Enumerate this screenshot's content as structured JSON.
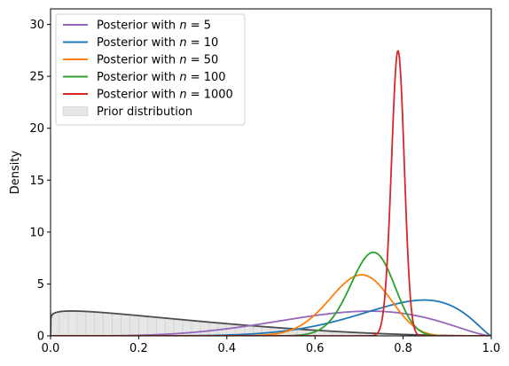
{
  "chart_data": {
    "type": "line",
    "title": "",
    "xlabel": "",
    "ylabel": "Density",
    "xlim": [
      0.0,
      1.0
    ],
    "ylim": [
      0,
      31.5
    ],
    "xticks": [
      0.0,
      0.2,
      0.4,
      0.6,
      0.8,
      1.0
    ],
    "xtick_labels": [
      "0.0",
      "0.2",
      "0.4",
      "0.6",
      "0.8",
      "1.0"
    ],
    "yticks": [
      0,
      5,
      10,
      15,
      20,
      25,
      30
    ],
    "ytick_labels": [
      "0",
      "5",
      "10",
      "15",
      "20",
      "25",
      "30"
    ],
    "grid": false,
    "legend_position": "top-left",
    "series": [
      {
        "name_prefix": "Posterior with ",
        "name_math": "n",
        "name_suffix": " = 5",
        "color": "#9467bd",
        "alpha": 5.2,
        "beta": 2.6
      },
      {
        "name_prefix": "Posterior with ",
        "name_math": "n",
        "name_suffix": " = 10",
        "color": "#1f77b4",
        "alpha": 8.5,
        "beta": 2.35
      },
      {
        "name_prefix": "Posterior with ",
        "name_math": "n",
        "name_suffix": " = 50",
        "color": "#ff7f0e",
        "alpha": 31.9,
        "beta": 13.9
      },
      {
        "name_prefix": "Posterior with ",
        "name_math": "n",
        "name_suffix": " = 100",
        "color": "#2ca02c",
        "alpha": 58.5,
        "beta": 22.0
      },
      {
        "name_prefix": "Posterior with ",
        "name_math": "n",
        "name_suffix": " = 1000",
        "color": "#d62728",
        "alpha": 623.0,
        "beta": 168.0
      }
    ],
    "prior": {
      "name": "Prior distribution",
      "curve_color": "#4d4d4d",
      "alpha": 1.1,
      "beta": 3.0,
      "histogram_color": "#e6e6e6",
      "histogram_edge": "#cccccc"
    }
  }
}
